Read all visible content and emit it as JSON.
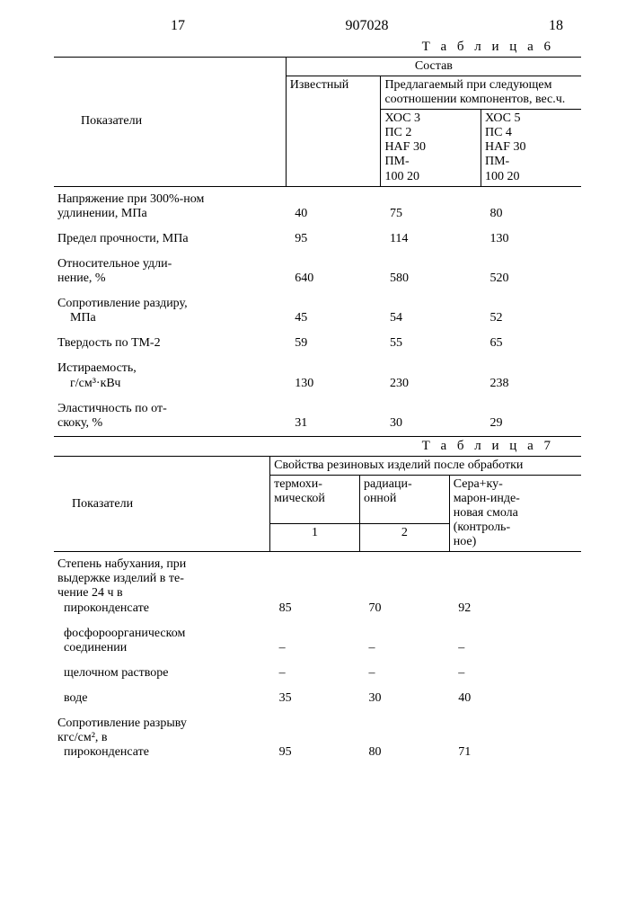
{
  "page": {
    "left_num": "17",
    "patent_no": "907028",
    "right_num": "18"
  },
  "table6": {
    "caption": "Т а б л и ц а   6",
    "header": {
      "indicators": "Показатели",
      "composition": "Состав",
      "known": "Известный",
      "proposed": "Предлагаемый при следующем соотношении компонентов, вес.ч.",
      "col_a_lines": [
        "ХОС 3",
        "ПС  2",
        "HAF 30",
        "ПМ-",
        "100 20"
      ],
      "col_b_lines": [
        "ХОС 5",
        "ПС  4",
        "HAF 30",
        "ПМ-",
        "100 20"
      ]
    },
    "rows": [
      {
        "label_lines": [
          "Напряжение при 300%-ном",
          "удлинении, МПа"
        ],
        "v1": "40",
        "v2": "75",
        "v3": "80"
      },
      {
        "label_lines": [
          "Предел прочности, МПа"
        ],
        "v1": "95",
        "v2": "114",
        "v3": "130"
      },
      {
        "label_lines": [
          "Относительное удли-",
          "нение, %"
        ],
        "v1": "640",
        "v2": "580",
        "v3": "520"
      },
      {
        "label_lines": [
          "Сопротивление раздиру,",
          "    МПа"
        ],
        "v1": "45",
        "v2": "54",
        "v3": "52"
      },
      {
        "label_lines": [
          "Твердость по ТМ-2"
        ],
        "v1": "59",
        "v2": "55",
        "v3": "65"
      },
      {
        "label_lines": [
          "Истираемость,",
          "    г/см³·кВч"
        ],
        "v1": "130",
        "v2": "230",
        "v3": "238"
      },
      {
        "label_lines": [
          "Эластичность по от-",
          "скоку, %"
        ],
        "v1": "31",
        "v2": "30",
        "v3": "29"
      }
    ]
  },
  "table7": {
    "caption": "Т а б л и ц а   7",
    "header": {
      "indicators": "Показатели",
      "props": "Свойства резиновых  изделий после обработки",
      "col1_lines": [
        "термохи-",
        "мической"
      ],
      "col2_lines": [
        "радиаци-",
        "онной"
      ],
      "col3_lines": [
        "Сера+ку-",
        "марон-инде-",
        "новая смола",
        "(контроль-",
        "ное)"
      ],
      "n1": "1",
      "n2": "2"
    },
    "rows": [
      {
        "label_lines": [
          "Степень набухания, при",
          "выдержке изделий в те-",
          "чение 24 ч в",
          "  пироконденсате"
        ],
        "v1": "85",
        "v2": "70",
        "v3": "92"
      },
      {
        "label_lines": [
          "  фосфороорганическом",
          "  соединении"
        ],
        "v1": "–",
        "v2": "–",
        "v3": "–"
      },
      {
        "label_lines": [
          "  щелочном растворе"
        ],
        "v1": "–",
        "v2": "–",
        "v3": "–"
      },
      {
        "label_lines": [
          "  воде"
        ],
        "v1": "35",
        "v2": "30",
        "v3": "40"
      },
      {
        "label_lines": [
          "Сопротивление разрыву",
          "кгс/см², в",
          "  пироконденсате"
        ],
        "v1": "95",
        "v2": "80",
        "v3": "71"
      }
    ]
  }
}
